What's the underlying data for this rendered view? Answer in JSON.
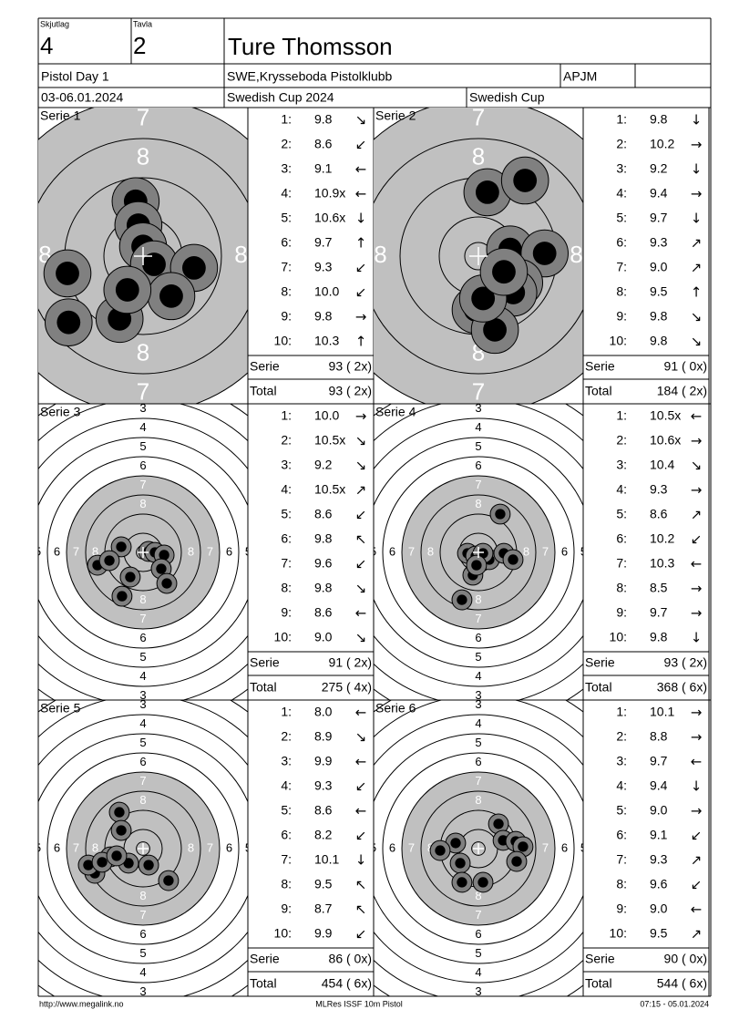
{
  "header": {
    "squad_label": "Skjutlag",
    "squad": "4",
    "target_label": "Tavla",
    "target": "2",
    "name": "Ture Thomsson",
    "event": "Pistol Day 1",
    "club": "SWE,Krysseboda Pistolklubb",
    "class": "APJM",
    "date": "03-06.01.2024",
    "competition": "Swedish Cup 2024",
    "cup": "Swedish Cup"
  },
  "series": [
    {
      "name": "Serie 1",
      "zoom": true,
      "ring_labels": [
        "7",
        "8"
      ],
      "shots": [
        {
          "n": "1:",
          "score": "9.8",
          "arrow": "↘"
        },
        {
          "n": "2:",
          "score": "8.6",
          "arrow": "↙"
        },
        {
          "n": "3:",
          "score": "9.1",
          "arrow": "←"
        },
        {
          "n": "4:",
          "score": "10.9x",
          "arrow": "←"
        },
        {
          "n": "5:",
          "score": "10.6x",
          "arrow": "↓"
        },
        {
          "n": "6:",
          "score": "9.7",
          "arrow": "↑"
        },
        {
          "n": "7:",
          "score": "9.3",
          "arrow": "↙"
        },
        {
          "n": "8:",
          "score": "10.0",
          "arrow": "↙"
        },
        {
          "n": "9:",
          "score": "9.8",
          "arrow": "→"
        },
        {
          "n": "10:",
          "score": "10.3",
          "arrow": "↑"
        }
      ],
      "serie_label": "Serie",
      "serie": "93 ( 2x)",
      "total_label": "Total",
      "total": "93 ( 2x)",
      "holes": [
        [
          -0.19,
          -1.4
        ],
        [
          -0.12,
          -0.79
        ],
        [
          0,
          -0.25
        ],
        [
          0.28,
          0.21
        ],
        [
          1.3,
          0.3
        ],
        [
          0.72,
          1.02
        ],
        [
          -0.6,
          1.6
        ],
        [
          -1.93,
          0.44
        ],
        [
          -1.9,
          1.69
        ],
        [
          -0.4,
          0.86
        ]
      ]
    },
    {
      "name": "Serie 2",
      "zoom": true,
      "ring_labels": [
        "7",
        "8"
      ],
      "shots": [
        {
          "n": "1:",
          "score": "9.8",
          "arrow": "↓"
        },
        {
          "n": "2:",
          "score": "10.2",
          "arrow": "→"
        },
        {
          "n": "3:",
          "score": "9.2",
          "arrow": "↓"
        },
        {
          "n": "4:",
          "score": "9.4",
          "arrow": "→"
        },
        {
          "n": "5:",
          "score": "9.7",
          "arrow": "↓"
        },
        {
          "n": "6:",
          "score": "9.3",
          "arrow": "↗"
        },
        {
          "n": "7:",
          "score": "9.0",
          "arrow": "↗"
        },
        {
          "n": "8:",
          "score": "9.5",
          "arrow": "↑"
        },
        {
          "n": "9:",
          "score": "9.8",
          "arrow": "↘"
        },
        {
          "n": "10:",
          "score": "9.8",
          "arrow": "↘"
        }
      ],
      "serie_label": "Serie",
      "serie": "91 ( 0x)",
      "total_label": "Total",
      "total": "184 ( 2x)",
      "holes": [
        [
          0.23,
          -1.63
        ],
        [
          1.19,
          -1.93
        ],
        [
          0.81,
          -0.17
        ],
        [
          1.69,
          -0.07
        ],
        [
          1.04,
          0.68
        ],
        [
          0.89,
          0.93
        ],
        [
          -0.07,
          1.37
        ],
        [
          0.42,
          1.88
        ],
        [
          0.12,
          1.08
        ],
        [
          0.65,
          0.4
        ]
      ]
    },
    {
      "name": "Serie 3",
      "zoom": false,
      "ring_labels": [
        "3",
        "4",
        "5",
        "6",
        "7",
        "8"
      ],
      "shots": [
        {
          "n": "1:",
          "score": "10.0",
          "arrow": "→"
        },
        {
          "n": "2:",
          "score": "10.5x",
          "arrow": "↘"
        },
        {
          "n": "3:",
          "score": "9.2",
          "arrow": "↘"
        },
        {
          "n": "4:",
          "score": "10.5x",
          "arrow": "↗"
        },
        {
          "n": "5:",
          "score": "8.6",
          "arrow": "↙"
        },
        {
          "n": "6:",
          "score": "9.8",
          "arrow": "↖"
        },
        {
          "n": "7:",
          "score": "9.6",
          "arrow": "↙"
        },
        {
          "n": "8:",
          "score": "9.8",
          "arrow": "↘"
        },
        {
          "n": "9:",
          "score": "8.6",
          "arrow": "←"
        },
        {
          "n": "10:",
          "score": "9.0",
          "arrow": "↘"
        }
      ],
      "serie_label": "Serie",
      "serie": "91 ( 2x)",
      "total_label": "Total",
      "total": "275 ( 4x)",
      "holes": [
        [
          -1.14,
          -0.29
        ],
        [
          -2.38,
          0.67
        ],
        [
          -1.76,
          0.43
        ],
        [
          -0.67,
          1.29
        ],
        [
          0.29,
          -0.05
        ],
        [
          0.62,
          0
        ],
        [
          1.1,
          0.14
        ],
        [
          0.95,
          0.86
        ],
        [
          1.24,
          1.62
        ],
        [
          -1.1,
          2.29
        ]
      ]
    },
    {
      "name": "Serie 4",
      "zoom": false,
      "ring_labels": [
        "3",
        "4",
        "5",
        "6",
        "7",
        "8"
      ],
      "shots": [
        {
          "n": "1:",
          "score": "10.5x",
          "arrow": "←"
        },
        {
          "n": "2:",
          "score": "10.6x",
          "arrow": "→"
        },
        {
          "n": "3:",
          "score": "10.4",
          "arrow": "↘"
        },
        {
          "n": "4:",
          "score": "9.3",
          "arrow": "→"
        },
        {
          "n": "5:",
          "score": "8.6",
          "arrow": "↗"
        },
        {
          "n": "6:",
          "score": "10.2",
          "arrow": "↙"
        },
        {
          "n": "7:",
          "score": "10.3",
          "arrow": "←"
        },
        {
          "n": "8:",
          "score": "8.5",
          "arrow": "→"
        },
        {
          "n": "9:",
          "score": "9.7",
          "arrow": "→"
        },
        {
          "n": "10:",
          "score": "9.8",
          "arrow": "↓"
        }
      ],
      "serie_label": "Serie",
      "serie": "93 ( 2x)",
      "total_label": "Total",
      "total": "368 ( 6x)",
      "holes": [
        [
          1.14,
          -2
        ],
        [
          -0.57,
          0.05
        ],
        [
          -0.14,
          0.19
        ],
        [
          0.57,
          0.38
        ],
        [
          1.33,
          0.05
        ],
        [
          1.81,
          0.38
        ],
        [
          -0.29,
          1.19
        ],
        [
          -0.86,
          2.48
        ],
        [
          0.24,
          0.05
        ],
        [
          -0.1,
          0.67
        ]
      ]
    },
    {
      "name": "Serie 5",
      "zoom": false,
      "ring_labels": [
        "3",
        "4",
        "5",
        "6",
        "7",
        "8"
      ],
      "shots": [
        {
          "n": "1:",
          "score": "8.0",
          "arrow": "←"
        },
        {
          "n": "2:",
          "score": "8.9",
          "arrow": "↘"
        },
        {
          "n": "3:",
          "score": "9.9",
          "arrow": "←"
        },
        {
          "n": "4:",
          "score": "9.3",
          "arrow": "↙"
        },
        {
          "n": "5:",
          "score": "8.6",
          "arrow": "←"
        },
        {
          "n": "6:",
          "score": "8.2",
          "arrow": "↙"
        },
        {
          "n": "7:",
          "score": "10.1",
          "arrow": "↓"
        },
        {
          "n": "8:",
          "score": "9.5",
          "arrow": "↖"
        },
        {
          "n": "9:",
          "score": "8.7",
          "arrow": "↖"
        },
        {
          "n": "10:",
          "score": "9.9",
          "arrow": "↙"
        }
      ],
      "serie_label": "Serie",
      "serie": "86 ( 0x)",
      "total_label": "Total",
      "total": "454 ( 6x)",
      "holes": [
        [
          -1.24,
          -1.9
        ],
        [
          -1.14,
          -0.95
        ],
        [
          -1.71,
          0.43
        ],
        [
          -2.52,
          1.29
        ],
        [
          -2.86,
          0.86
        ],
        [
          -2.14,
          0.71
        ],
        [
          -0.76,
          0.76
        ],
        [
          0.29,
          0.86
        ],
        [
          1.33,
          1.67
        ],
        [
          -1.38,
          0.38
        ]
      ]
    },
    {
      "name": "Serie 6",
      "zoom": false,
      "ring_labels": [
        "3",
        "4",
        "5",
        "6",
        "7",
        "8"
      ],
      "shots": [
        {
          "n": "1:",
          "score": "10.1",
          "arrow": "→"
        },
        {
          "n": "2:",
          "score": "8.8",
          "arrow": "→"
        },
        {
          "n": "3:",
          "score": "9.7",
          "arrow": "←"
        },
        {
          "n": "4:",
          "score": "9.4",
          "arrow": "↓"
        },
        {
          "n": "5:",
          "score": "9.0",
          "arrow": "→"
        },
        {
          "n": "6:",
          "score": "9.1",
          "arrow": "↙"
        },
        {
          "n": "7:",
          "score": "9.3",
          "arrow": "↗"
        },
        {
          "n": "8:",
          "score": "9.6",
          "arrow": "↙"
        },
        {
          "n": "9:",
          "score": "9.0",
          "arrow": "←"
        },
        {
          "n": "10:",
          "score": "9.5",
          "arrow": "↗"
        }
      ],
      "serie_label": "Serie",
      "serie": "90 ( 0x)",
      "total_label": "Total",
      "total": "544 ( 6x)",
      "holes": [
        [
          1.05,
          -1.29
        ],
        [
          -1.19,
          -0.29
        ],
        [
          -2,
          0.1
        ],
        [
          1.29,
          -0.43
        ],
        [
          1.95,
          -0.38
        ],
        [
          2.33,
          -0.1
        ],
        [
          2,
          0.67
        ],
        [
          -0.95,
          0.76
        ],
        [
          -0.86,
          1.76
        ],
        [
          0.24,
          1.76
        ]
      ]
    }
  ],
  "footer": {
    "url": "http://www.megalink.no",
    "program": "MLRes ISSF 10m Pistol",
    "time": "07:15 - 05.01.2024"
  }
}
